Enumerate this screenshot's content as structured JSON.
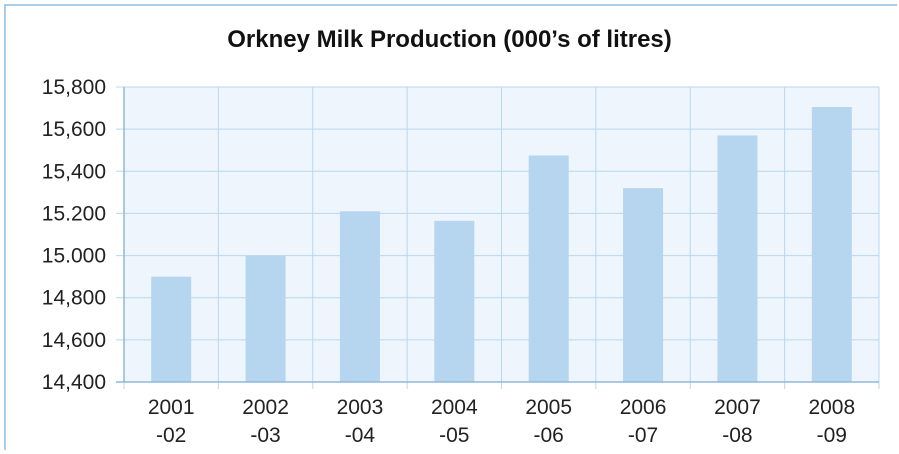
{
  "chart_data": {
    "type": "bar",
    "title": "Orkney Milk Production (000’s of litres)",
    "xlabel": "",
    "ylabel": "",
    "categories": [
      [
        "2001",
        "-02"
      ],
      [
        "2002",
        "-03"
      ],
      [
        "2003",
        "-04"
      ],
      [
        "2004",
        "-05"
      ],
      [
        "2005",
        "-06"
      ],
      [
        "2006",
        "-07"
      ],
      [
        "2007",
        "-08"
      ],
      [
        "2008",
        "-09"
      ]
    ],
    "values": [
      14900,
      15000,
      15210,
      15165,
      15475,
      15320,
      15570,
      15705
    ],
    "ylim": [
      14400,
      15800
    ],
    "yticks": [
      14400,
      14600,
      14800,
      15000,
      15200,
      15400,
      15600,
      15800
    ],
    "ytick_labels": [
      "14,400",
      "14,600",
      "14,800",
      "15.000",
      "15.200",
      "15,400",
      "15,600",
      "15,800"
    ],
    "grid": true,
    "colors": {
      "bar": "#b5d6ee",
      "plot_bg": "#eef5fc",
      "grid": "#b9d7ee",
      "axis": "#8fb9d9",
      "frame": "#a9cde6"
    }
  }
}
